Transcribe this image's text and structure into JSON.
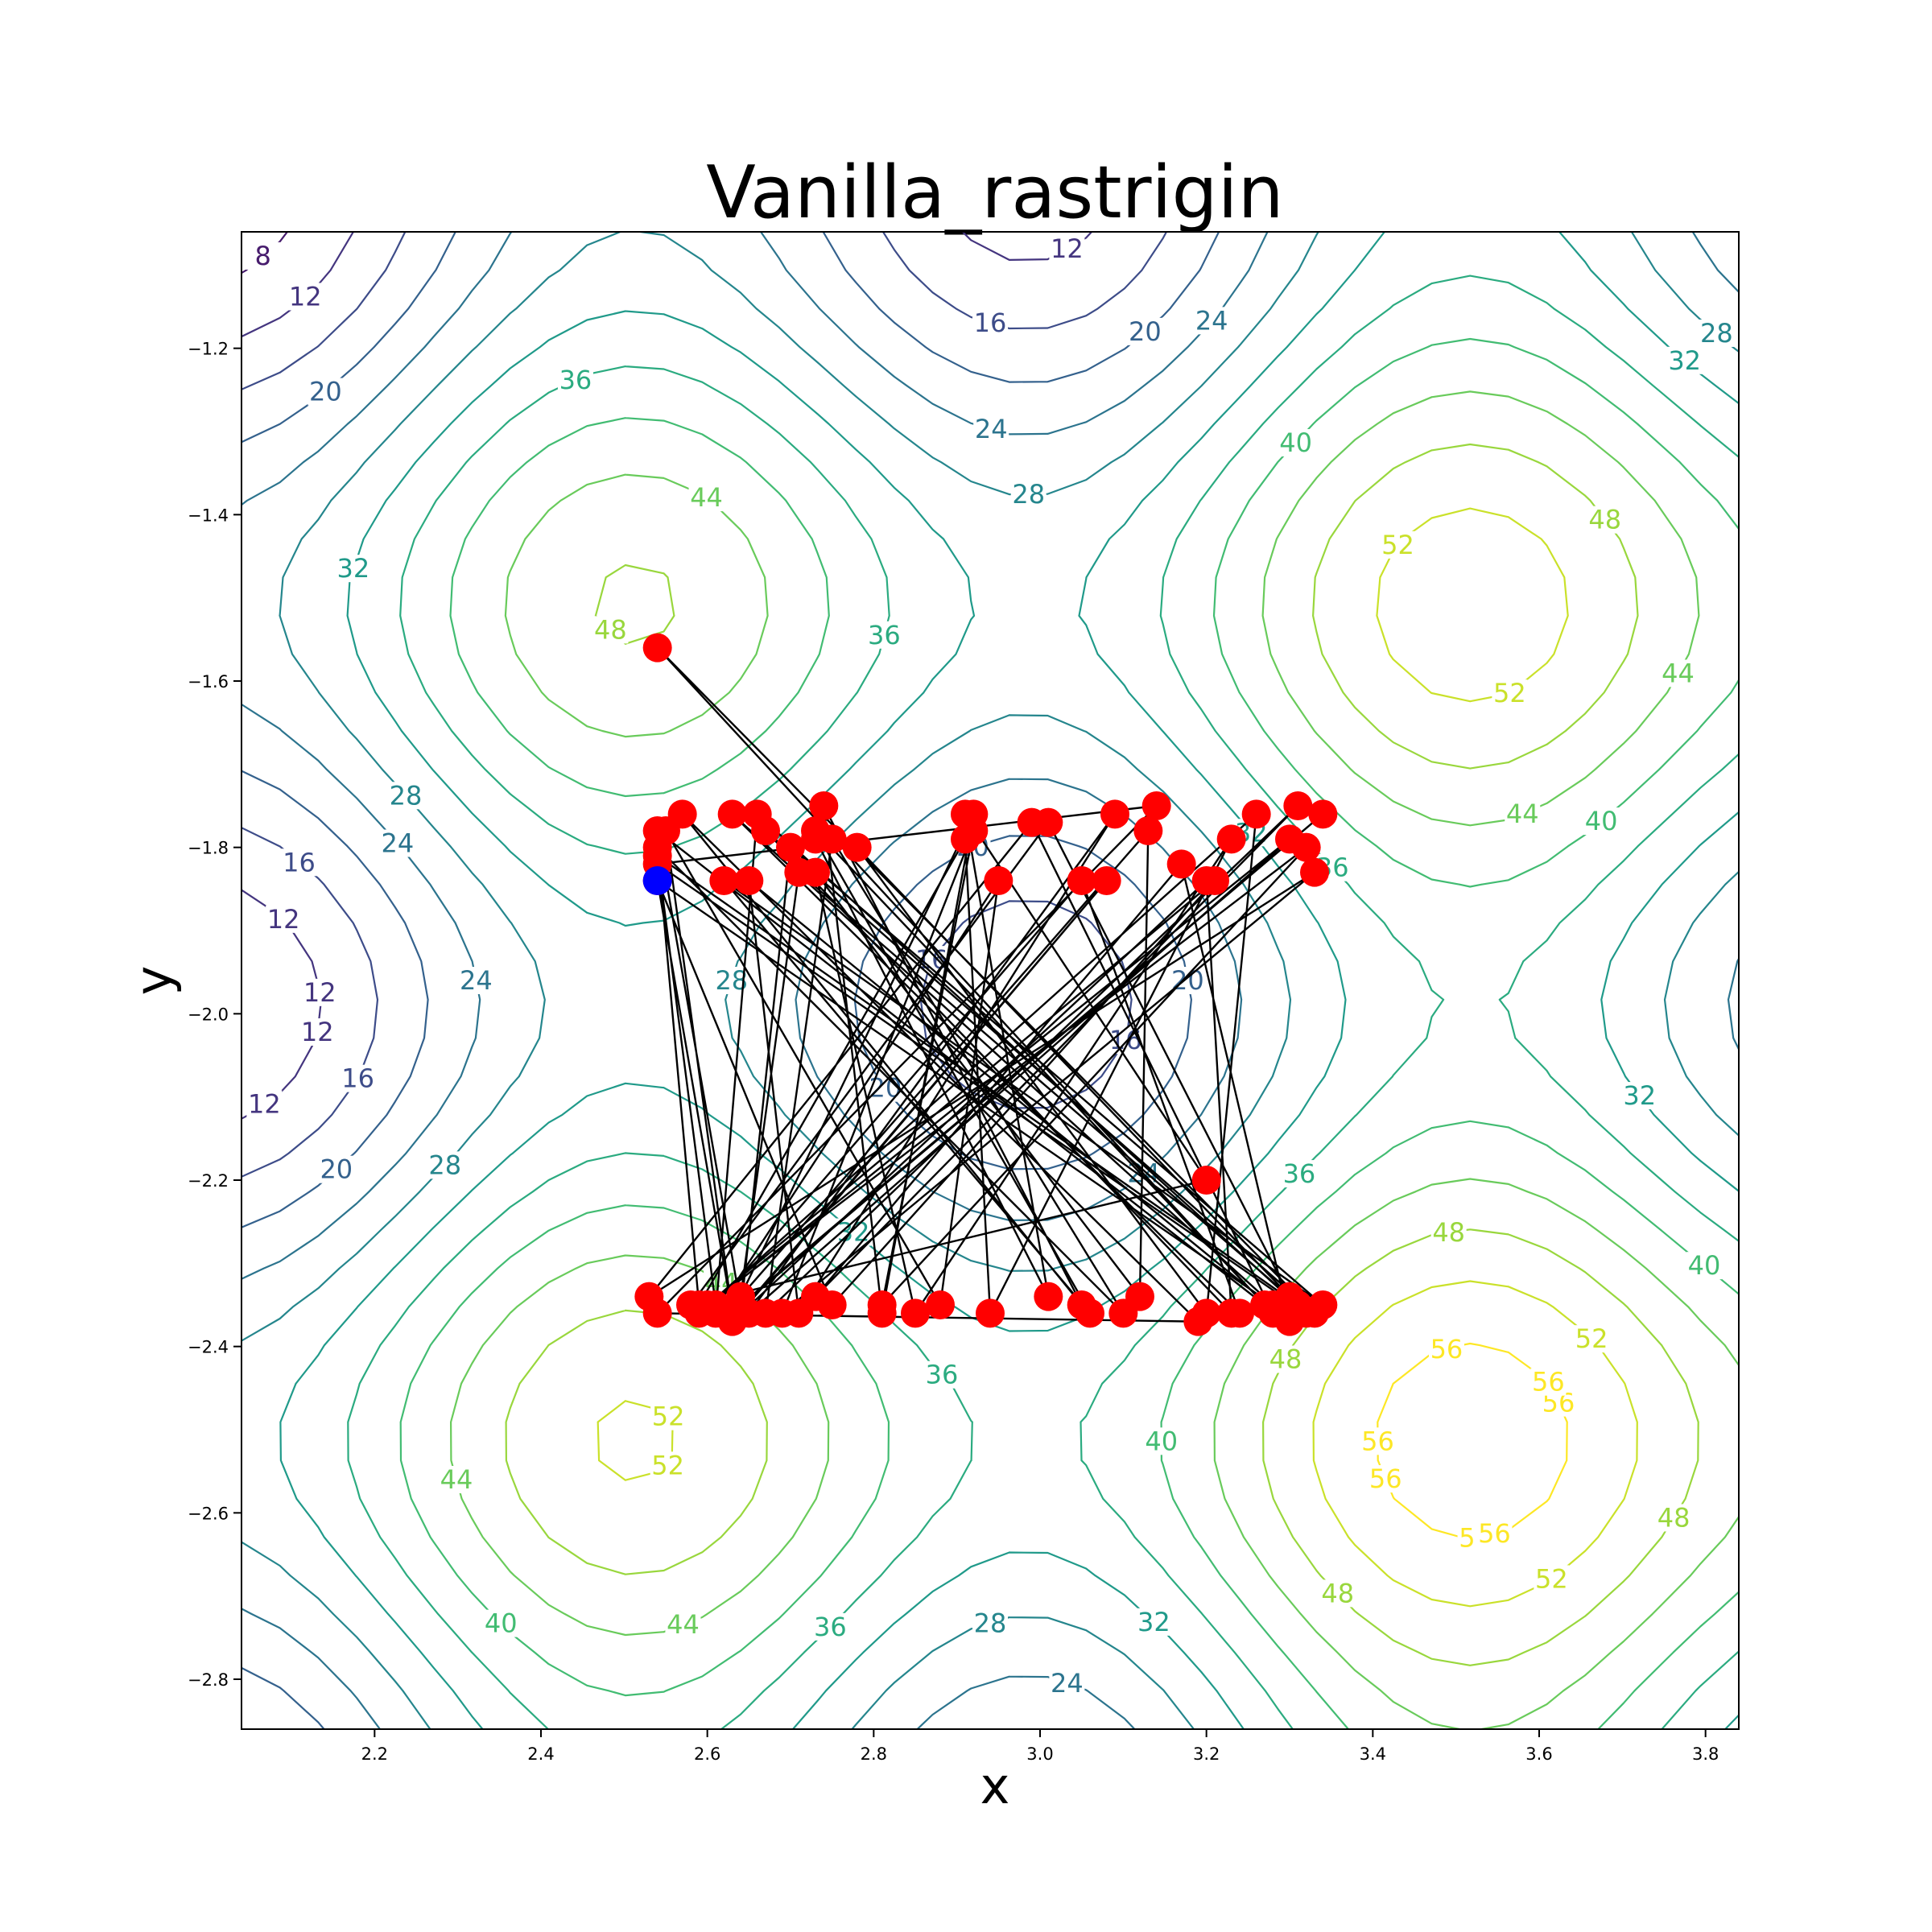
{
  "chart_data": {
    "type": "contour",
    "title": "Vanilla_rastrigin",
    "xlabel": "x",
    "ylabel": "y",
    "xlim": [
      2.04,
      3.84
    ],
    "ylim": [
      -2.86,
      -1.06
    ],
    "xticks": [
      2.2,
      2.4,
      2.6,
      2.8,
      3.0,
      3.2,
      3.4,
      3.6,
      3.8
    ],
    "yticks": [
      -2.8,
      -2.6,
      -2.4,
      -2.2,
      -2.0,
      -1.8,
      -1.6,
      -1.4,
      -1.2
    ],
    "xtick_labels": [
      "2.2",
      "2.4",
      "2.6",
      "2.8",
      "3.0",
      "3.2",
      "3.4",
      "3.6",
      "3.8"
    ],
    "ytick_labels": [
      "−2.8",
      "−2.6",
      "−2.4",
      "−2.2",
      "−2.0",
      "−1.8",
      "−1.6",
      "−1.4",
      "−1.2"
    ],
    "function": "rastrigin",
    "contour_levels": [
      4,
      8,
      12,
      16,
      20,
      24,
      28,
      32,
      36,
      40,
      44,
      48,
      52,
      56
    ],
    "colormap": "viridis",
    "start_point": {
      "x": 2.54,
      "y": -1.84,
      "color": "#0000ff"
    },
    "path_color": "#000000",
    "point_color": "#ff0000",
    "path": [
      [
        2.54,
        -1.84
      ],
      [
        2.63,
        -2.36
      ],
      [
        2.55,
        -1.78
      ],
      [
        2.88,
        -2.35
      ],
      [
        2.95,
        -1.84
      ],
      [
        2.61,
        -2.36
      ],
      [
        2.66,
        -1.76
      ],
      [
        3.32,
        -2.36
      ],
      [
        2.54,
        -1.82
      ],
      [
        3.14,
        -1.75
      ],
      [
        2.54,
        -2.36
      ],
      [
        3.19,
        -2.37
      ],
      [
        2.57,
        -1.76
      ],
      [
        3.05,
        -2.35
      ],
      [
        2.74,
        -1.75
      ],
      [
        2.81,
        -2.36
      ],
      [
        2.92,
        -1.76
      ],
      [
        2.63,
        -2.36
      ],
      [
        3.34,
        -1.76
      ],
      [
        2.64,
        -2.35
      ],
      [
        2.54,
        -1.78
      ],
      [
        3.27,
        -2.35
      ],
      [
        2.54,
        -1.56
      ],
      [
        3.33,
        -2.36
      ],
      [
        2.67,
        -1.78
      ],
      [
        3.23,
        -2.36
      ],
      [
        3.2,
        -1.84
      ],
      [
        2.63,
        -2.37
      ],
      [
        3.08,
        -1.84
      ],
      [
        2.64,
        -2.36
      ],
      [
        2.7,
        -1.8
      ],
      [
        3.34,
        -2.35
      ],
      [
        2.62,
        -1.84
      ],
      [
        3.06,
        -2.36
      ],
      [
        2.73,
        -1.78
      ],
      [
        3.28,
        -2.36
      ],
      [
        2.99,
        -1.77
      ],
      [
        2.53,
        -2.34
      ],
      [
        3.33,
        -1.83
      ],
      [
        2.69,
        -2.36
      ],
      [
        2.92,
        -1.78
      ],
      [
        2.81,
        -2.35
      ],
      [
        3.32,
        -1.8
      ],
      [
        2.6,
        -2.35
      ],
      [
        3.21,
        -1.84
      ],
      [
        2.75,
        -2.35
      ],
      [
        2.54,
        -1.84
      ],
      [
        3.28,
        -2.35
      ],
      [
        2.63,
        -1.76
      ],
      [
        3.24,
        -2.36
      ],
      [
        3.05,
        -1.84
      ],
      [
        2.61,
        -2.35
      ],
      [
        2.54,
        -1.81
      ],
      [
        3.31,
        -2.35
      ],
      [
        2.78,
        -1.8
      ],
      [
        3.2,
        -2.36
      ],
      [
        3.26,
        -1.76
      ],
      [
        2.59,
        -2.36
      ],
      [
        3.3,
        -1.79
      ],
      [
        2.65,
        -2.36
      ],
      [
        3.09,
        -1.76
      ],
      [
        2.71,
        -2.36
      ],
      [
        2.65,
        -1.84
      ],
      [
        3.3,
        -2.37
      ],
      [
        3.17,
        -1.82
      ],
      [
        2.73,
        -2.34
      ],
      [
        3.31,
        -1.75
      ],
      [
        2.67,
        -2.36
      ],
      [
        2.75,
        -1.79
      ],
      [
        3.1,
        -2.36
      ],
      [
        2.54,
        -1.8
      ],
      [
        2.59,
        -2.35
      ],
      [
        2.91,
        -1.79
      ],
      [
        2.94,
        -2.36
      ],
      [
        3.23,
        -1.79
      ],
      [
        2.85,
        -2.36
      ],
      [
        2.73,
        -1.83
      ],
      [
        3.12,
        -2.34
      ],
      [
        3.13,
        -1.78
      ],
      [
        2.64,
        -2.34
      ],
      [
        2.71,
        -1.83
      ],
      [
        3.3,
        -2.34
      ],
      [
        3.01,
        -1.77
      ],
      [
        2.58,
        -2.35
      ],
      [
        3.2,
        -2.2
      ],
      [
        2.91,
        -1.76
      ],
      [
        3.01,
        -2.34
      ],
      [
        2.73,
        -1.79
      ]
    ]
  }
}
